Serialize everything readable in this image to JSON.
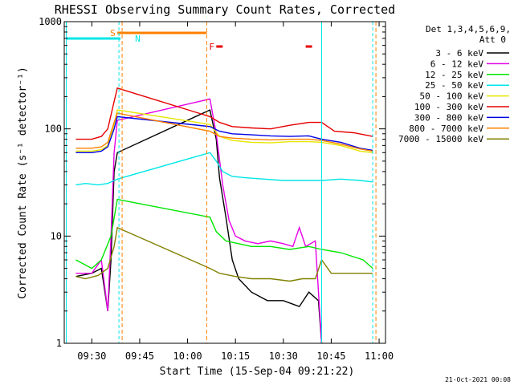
{
  "chart_data": {
    "type": "line",
    "title": "RHESSI Observing Summary Count Rates, Corrected",
    "xlabel": "Start Time (15-Sep-04 09:21:22)",
    "ylabel": "Corrected Count Rate (s⁻¹ detector⁻¹)",
    "yscale": "log",
    "ylim": [
      1,
      1000
    ],
    "xlim": [
      "09:21:22",
      "11:02:00"
    ],
    "x_ticks": [
      "09:30",
      "09:45",
      "10:00",
      "10:15",
      "10:30",
      "10:45",
      "11:00"
    ],
    "y_ticks": [
      "1",
      "10",
      "100",
      "1000"
    ],
    "grid": false,
    "footer_timestamp": "21-Oct-2021 00:08",
    "detectors_label": "Det 1,3,4,5,6,9,",
    "attenuator_label": "Att 0",
    "legend_position": "right",
    "flags": [
      {
        "label": "S",
        "color": "#ff8000",
        "from": "09:38",
        "to": "10:06"
      },
      {
        "label": "N",
        "color": "#00e6e6",
        "from": "09:22",
        "to": "09:39"
      },
      {
        "label": "F",
        "color": "#e60000",
        "marks": [
          [
            "10:09",
            "10:11"
          ],
          [
            "10:37",
            "10:39"
          ]
        ]
      }
    ],
    "night_boundaries": [
      "09:22",
      "09:38:30",
      "10:42",
      "10:58"
    ],
    "saa_boundaries": [
      "09:39:30",
      "10:06",
      "10:59"
    ],
    "series": [
      {
        "name": "3 - 6 keV",
        "color": "#000000",
        "points": [
          [
            "09:25",
            4.2
          ],
          [
            "09:30",
            4.5
          ],
          [
            "09:33",
            5
          ],
          [
            "09:35",
            2
          ],
          [
            "09:36",
            6
          ],
          [
            "09:37",
            40
          ],
          [
            "09:38",
            60
          ],
          [
            "10:07",
            150
          ],
          [
            "10:09",
            80
          ],
          [
            "10:10",
            35
          ],
          [
            "10:12",
            15
          ],
          [
            "10:14",
            6
          ],
          [
            "10:16",
            4
          ],
          [
            "10:20",
            3
          ],
          [
            "10:25",
            2.5
          ],
          [
            "10:30",
            2.5
          ],
          [
            "10:35",
            2.2
          ],
          [
            "10:38",
            3
          ],
          [
            "10:41",
            2.5
          ],
          [
            "10:42",
            1
          ]
        ]
      },
      {
        "name": "6 - 12 keV",
        "color": "#e600e6",
        "points": [
          [
            "09:25",
            4.5
          ],
          [
            "09:30",
            4.5
          ],
          [
            "09:33",
            6
          ],
          [
            "09:35",
            2
          ],
          [
            "09:36",
            10
          ],
          [
            "09:37",
            60
          ],
          [
            "09:38",
            120
          ],
          [
            "10:07",
            190
          ],
          [
            "10:09",
            90
          ],
          [
            "10:11",
            30
          ],
          [
            "10:13",
            14
          ],
          [
            "10:15",
            10
          ],
          [
            "10:18",
            9
          ],
          [
            "10:22",
            8.5
          ],
          [
            "10:26",
            9
          ],
          [
            "10:30",
            8.5
          ],
          [
            "10:33",
            8
          ],
          [
            "10:35",
            12
          ],
          [
            "10:37",
            8
          ],
          [
            "10:40",
            9
          ],
          [
            "10:42",
            1
          ]
        ]
      },
      {
        "name": "12 - 25 keV",
        "color": "#00e600",
        "points": [
          [
            "09:25",
            6
          ],
          [
            "09:30",
            5
          ],
          [
            "09:33",
            6
          ],
          [
            "09:36",
            10
          ],
          [
            "09:38",
            22
          ],
          [
            "10:07",
            15
          ],
          [
            "10:09",
            11
          ],
          [
            "10:12",
            9
          ],
          [
            "10:16",
            8.5
          ],
          [
            "10:20",
            8
          ],
          [
            "10:26",
            8
          ],
          [
            "10:32",
            7.5
          ],
          [
            "10:38",
            8
          ],
          [
            "10:42",
            7.5
          ],
          [
            "10:48",
            7
          ],
          [
            "10:55",
            6
          ],
          [
            "10:58",
            5
          ]
        ]
      },
      {
        "name": "25 - 50 keV",
        "color": "#00e6e6",
        "points": [
          [
            "09:25",
            30
          ],
          [
            "09:28",
            31
          ],
          [
            "09:32",
            30
          ],
          [
            "09:35",
            31
          ],
          [
            "09:37",
            33
          ],
          [
            "09:38",
            34
          ],
          [
            "10:07",
            60
          ],
          [
            "10:09",
            50
          ],
          [
            "10:11",
            40
          ],
          [
            "10:14",
            36
          ],
          [
            "10:18",
            35
          ],
          [
            "10:24",
            34
          ],
          [
            "10:30",
            33
          ],
          [
            "10:36",
            33
          ],
          [
            "10:42",
            33
          ],
          [
            "10:48",
            34
          ],
          [
            "10:54",
            33
          ],
          [
            "10:58",
            32
          ]
        ]
      },
      {
        "name": "50 - 100 keV",
        "color": "#e6e600",
        "points": [
          [
            "09:25",
            62
          ],
          [
            "09:30",
            62
          ],
          [
            "09:33",
            64
          ],
          [
            "09:35",
            70
          ],
          [
            "09:37",
            110
          ],
          [
            "09:38",
            150
          ],
          [
            "10:07",
            110
          ],
          [
            "10:10",
            85
          ],
          [
            "10:14",
            78
          ],
          [
            "10:20",
            75
          ],
          [
            "10:26",
            74
          ],
          [
            "10:32",
            76
          ],
          [
            "10:38",
            76
          ],
          [
            "10:42",
            75
          ],
          [
            "10:48",
            70
          ],
          [
            "10:54",
            62
          ],
          [
            "10:58",
            60
          ]
        ]
      },
      {
        "name": "100 - 300 keV",
        "color": "#e60000",
        "points": [
          [
            "09:25",
            80
          ],
          [
            "09:30",
            80
          ],
          [
            "09:33",
            85
          ],
          [
            "09:35",
            100
          ],
          [
            "09:37",
            180
          ],
          [
            "09:38",
            240
          ],
          [
            "10:07",
            130
          ],
          [
            "10:10",
            115
          ],
          [
            "10:14",
            105
          ],
          [
            "10:20",
            102
          ],
          [
            "10:26",
            100
          ],
          [
            "10:32",
            108
          ],
          [
            "10:38",
            115
          ],
          [
            "10:42",
            115
          ],
          [
            "10:46",
            95
          ],
          [
            "10:52",
            92
          ],
          [
            "10:58",
            85
          ]
        ]
      },
      {
        "name": "300 - 800 keV",
        "color": "#0000e6",
        "points": [
          [
            "09:25",
            60
          ],
          [
            "09:30",
            60
          ],
          [
            "09:33",
            62
          ],
          [
            "09:35",
            68
          ],
          [
            "09:37",
            100
          ],
          [
            "09:38",
            130
          ],
          [
            "10:07",
            105
          ],
          [
            "10:10",
            95
          ],
          [
            "10:14",
            90
          ],
          [
            "10:20",
            88
          ],
          [
            "10:26",
            86
          ],
          [
            "10:32",
            85
          ],
          [
            "10:38",
            86
          ],
          [
            "10:42",
            80
          ],
          [
            "10:48",
            75
          ],
          [
            "10:54",
            66
          ],
          [
            "10:58",
            63
          ]
        ]
      },
      {
        "name": "800 - 7000 keV",
        "color": "#ff8000",
        "points": [
          [
            "09:25",
            66
          ],
          [
            "09:30",
            66
          ],
          [
            "09:33",
            68
          ],
          [
            "09:35",
            75
          ],
          [
            "09:37",
            115
          ],
          [
            "09:38",
            140
          ],
          [
            "10:07",
            95
          ],
          [
            "10:10",
            85
          ],
          [
            "10:14",
            82
          ],
          [
            "10:20",
            80
          ],
          [
            "10:26",
            79
          ],
          [
            "10:32",
            80
          ],
          [
            "10:38",
            80
          ],
          [
            "10:42",
            78
          ],
          [
            "10:48",
            72
          ],
          [
            "10:54",
            65
          ],
          [
            "10:58",
            62
          ]
        ]
      },
      {
        "name": "7000 - 15000 keV",
        "color": "#808000",
        "points": [
          [
            "09:25",
            4.2
          ],
          [
            "09:28",
            4
          ],
          [
            "09:32",
            4.3
          ],
          [
            "09:35",
            5
          ],
          [
            "09:37",
            8
          ],
          [
            "09:38",
            12
          ],
          [
            "10:07",
            5
          ],
          [
            "10:10",
            4.5
          ],
          [
            "10:15",
            4.2
          ],
          [
            "10:20",
            4
          ],
          [
            "10:26",
            4
          ],
          [
            "10:32",
            3.8
          ],
          [
            "10:36",
            4
          ],
          [
            "10:40",
            4
          ],
          [
            "10:42",
            6
          ],
          [
            "10:45",
            4.5
          ],
          [
            "10:50",
            4.5
          ],
          [
            "10:55",
            4.5
          ],
          [
            "10:58",
            4.5
          ]
        ]
      }
    ]
  }
}
